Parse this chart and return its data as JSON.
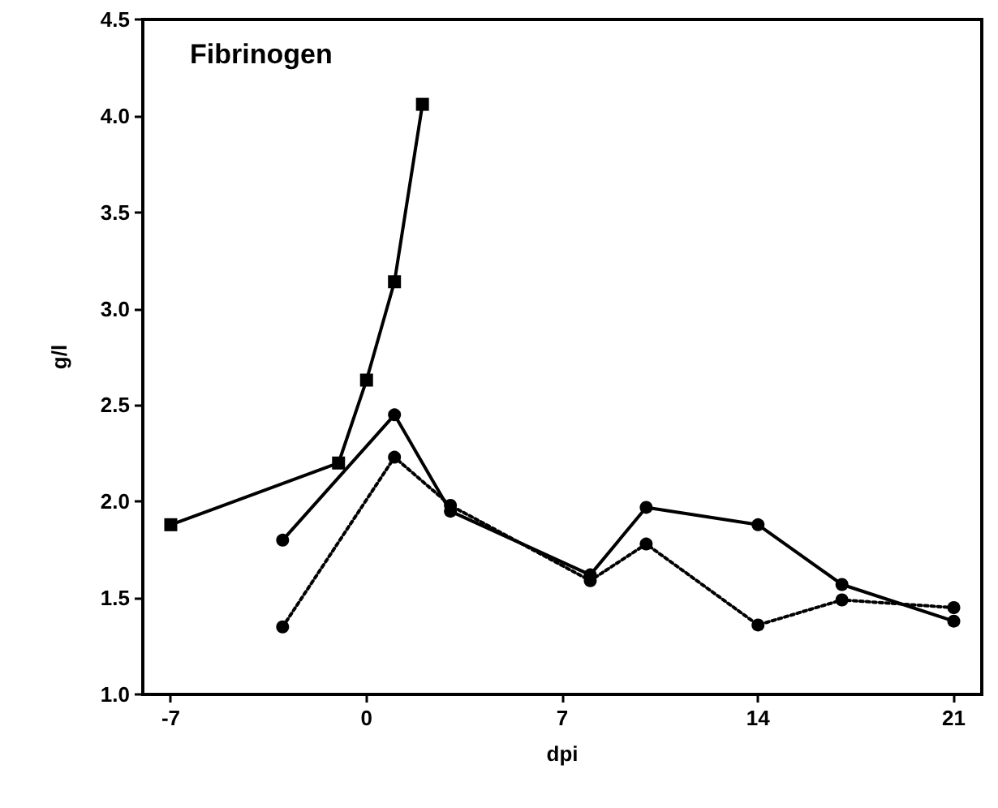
{
  "chart_data": {
    "type": "line",
    "title": "Fibrinogen",
    "xlabel": "dpi",
    "ylabel": "g/l",
    "xlim": [
      -8,
      22
    ],
    "xticks": [
      -7,
      0,
      7,
      14,
      21
    ],
    "ylim": [
      1.0,
      4.5
    ],
    "yticks": [
      {
        "value": 1.0,
        "label": "1.0"
      },
      1.5,
      {
        "value": 2.0,
        "label": "2.0"
      },
      2.5,
      {
        "value": 3.0,
        "label": "3.0"
      },
      3.5,
      {
        "value": 4.0,
        "label": "4.0"
      },
      4.5
    ],
    "series": [
      {
        "color": "#000000",
        "marker": "square",
        "line_style": "solid",
        "x": [
          -7,
          -1,
          0,
          1,
          2
        ],
        "values": [
          1.88,
          2.2,
          2.63,
          3.14,
          4.06
        ]
      },
      {
        "color": "#000000",
        "marker": "circle",
        "line_style": "solid",
        "x": [
          -3,
          1,
          3,
          8,
          10,
          14,
          17,
          21
        ],
        "values": [
          1.8,
          2.45,
          1.95,
          1.62,
          1.97,
          1.88,
          1.57,
          1.38
        ]
      },
      {
        "color": "#000000",
        "marker": "circle",
        "line_style": "dotted",
        "x": [
          -3,
          1,
          3,
          8,
          10,
          14,
          17,
          21
        ],
        "values": [
          1.35,
          2.23,
          1.98,
          1.59,
          1.78,
          1.36,
          1.49,
          1.45
        ]
      }
    ]
  }
}
